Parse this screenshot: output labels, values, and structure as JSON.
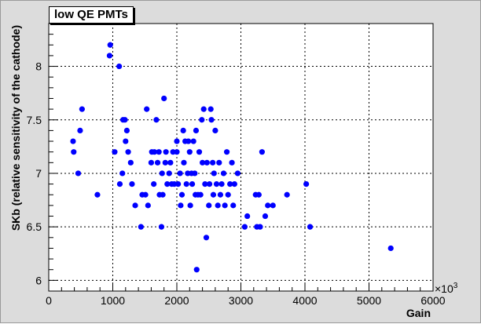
{
  "chart_data": {
    "type": "scatter",
    "title": "low QE PMTs",
    "xlabel": "Gain",
    "ylabel": "SKb (relative sensitivity of the cathode)",
    "x_multiplier_label": "×10",
    "x_multiplier_exponent": "3",
    "xlim": [
      0,
      6000
    ],
    "ylim": [
      5.9,
      8.4
    ],
    "xticks": [
      0,
      1000,
      2000,
      3000,
      4000,
      5000,
      6000
    ],
    "xtick_labels": [
      "0",
      "1000",
      "2000",
      "3000",
      "4000",
      "5000",
      "6000"
    ],
    "yticks": [
      6,
      6.5,
      7,
      7.5,
      8
    ],
    "ytick_labels": [
      "6",
      "6.5",
      "7",
      "7.5",
      "8"
    ],
    "grid": true,
    "marker_color": "#0000ff",
    "points": [
      [
        380,
        7.3
      ],
      [
        390,
        7.2
      ],
      [
        460,
        7.0
      ],
      [
        490,
        7.4
      ],
      [
        520,
        7.6
      ],
      [
        760,
        6.8
      ],
      [
        950,
        8.1
      ],
      [
        960,
        8.2
      ],
      [
        1030,
        7.2
      ],
      [
        1100,
        8.0
      ],
      [
        1110,
        6.9
      ],
      [
        1160,
        7.5
      ],
      [
        1150,
        7.0
      ],
      [
        1190,
        7.5
      ],
      [
        1200,
        7.3
      ],
      [
        1220,
        7.4
      ],
      [
        1240,
        7.2
      ],
      [
        1280,
        7.1
      ],
      [
        1300,
        6.9
      ],
      [
        1350,
        6.7
      ],
      [
        1440,
        6.5
      ],
      [
        1460,
        6.8
      ],
      [
        1510,
        6.8
      ],
      [
        1530,
        7.6
      ],
      [
        1550,
        6.7
      ],
      [
        1600,
        7.1
      ],
      [
        1610,
        7.2
      ],
      [
        1640,
        6.9
      ],
      [
        1650,
        7.2
      ],
      [
        1680,
        7.5
      ],
      [
        1700,
        7.1
      ],
      [
        1720,
        7.2
      ],
      [
        1730,
        6.8
      ],
      [
        1760,
        6.5
      ],
      [
        1770,
        7.0
      ],
      [
        1780,
        6.8
      ],
      [
        1800,
        7.7
      ],
      [
        1820,
        7.1
      ],
      [
        1830,
        7.2
      ],
      [
        1850,
        6.9
      ],
      [
        1880,
        7.0
      ],
      [
        1900,
        7.1
      ],
      [
        1920,
        6.9
      ],
      [
        1940,
        7.2
      ],
      [
        1960,
        6.9
      ],
      [
        2000,
        7.3
      ],
      [
        2000,
        7.2
      ],
      [
        2020,
        6.9
      ],
      [
        2050,
        7.0
      ],
      [
        2060,
        6.7
      ],
      [
        2080,
        6.8
      ],
      [
        2100,
        7.4
      ],
      [
        2110,
        7.1
      ],
      [
        2130,
        7.3
      ],
      [
        2150,
        6.9
      ],
      [
        2170,
        7.0
      ],
      [
        2180,
        7.3
      ],
      [
        2200,
        7.2
      ],
      [
        2210,
        6.7
      ],
      [
        2230,
        7.0
      ],
      [
        2240,
        6.9
      ],
      [
        2260,
        7.3
      ],
      [
        2280,
        7.0
      ],
      [
        2290,
        6.8
      ],
      [
        2300,
        7.4
      ],
      [
        2310,
        6.1
      ],
      [
        2330,
        6.8
      ],
      [
        2350,
        7.2
      ],
      [
        2370,
        6.8
      ],
      [
        2390,
        7.5
      ],
      [
        2400,
        7.1
      ],
      [
        2420,
        7.6
      ],
      [
        2440,
        6.9
      ],
      [
        2460,
        6.4
      ],
      [
        2470,
        7.1
      ],
      [
        2500,
        6.7
      ],
      [
        2510,
        6.9
      ],
      [
        2530,
        7.6
      ],
      [
        2540,
        7.5
      ],
      [
        2560,
        7.1
      ],
      [
        2570,
        6.8
      ],
      [
        2580,
        7.0
      ],
      [
        2600,
        7.4
      ],
      [
        2620,
        6.9
      ],
      [
        2640,
        6.7
      ],
      [
        2660,
        7.1
      ],
      [
        2680,
        6.8
      ],
      [
        2700,
        6.9
      ],
      [
        2730,
        7.0
      ],
      [
        2750,
        6.7
      ],
      [
        2780,
        7.2
      ],
      [
        2800,
        6.8
      ],
      [
        2830,
        6.9
      ],
      [
        2860,
        7.1
      ],
      [
        2880,
        6.7
      ],
      [
        2900,
        6.9
      ],
      [
        2950,
        7.0
      ],
      [
        3060,
        6.5
      ],
      [
        3100,
        6.6
      ],
      [
        3230,
        6.8
      ],
      [
        3250,
        6.5
      ],
      [
        3280,
        6.8
      ],
      [
        3300,
        6.5
      ],
      [
        3330,
        7.2
      ],
      [
        3380,
        6.6
      ],
      [
        3420,
        6.7
      ],
      [
        3500,
        6.7
      ],
      [
        3720,
        6.8
      ],
      [
        4020,
        6.9
      ],
      [
        4080,
        6.5
      ],
      [
        5340,
        6.3
      ]
    ]
  }
}
